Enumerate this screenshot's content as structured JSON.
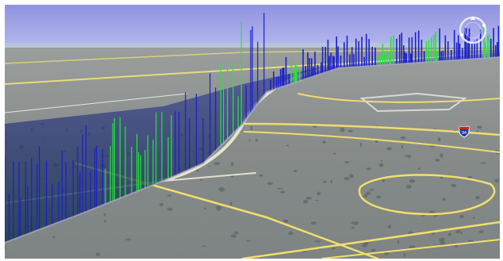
{
  "map": {
    "view": "3d-tilted-aerial",
    "sky_color": "#9ea1e6",
    "terrain_color": "#8b8f8f",
    "road_color": "#f2e27a",
    "curtain_colors": [
      "#1a1fd0",
      "#23e63a"
    ],
    "highway_shield": {
      "label": "94",
      "icon": "interstate-shield-icon"
    }
  },
  "controls": {
    "navigation": {
      "icon": "compass-ring-icon"
    }
  }
}
